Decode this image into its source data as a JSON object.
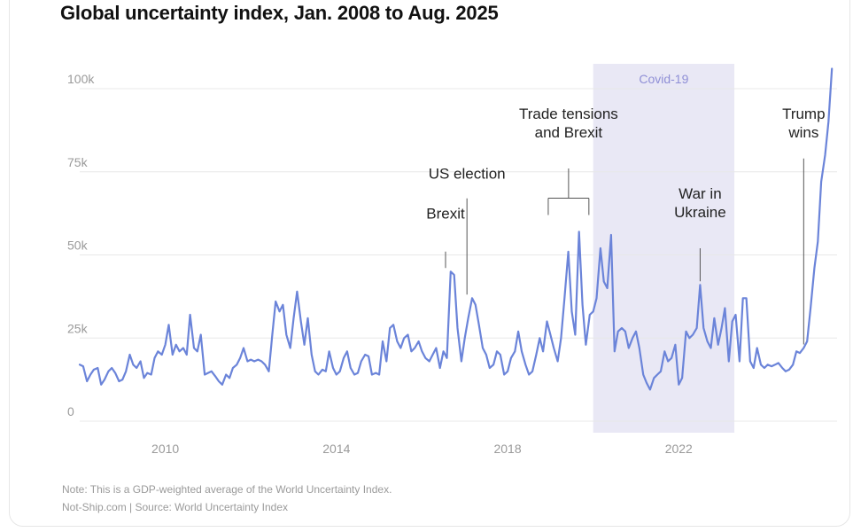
{
  "title": "Global uncertainty index, Jan. 2008 to Aug. 2025",
  "note": "Note: This is a GDP-weighted average of the World Uncertainty Index.",
  "source": "Not-Ship.com | Source: World Uncertainty Index",
  "colors": {
    "line": "#6b84d9",
    "covid_band": "#e9e8f5",
    "covid_label": "#8f8fd6",
    "grid": "#e8e8e8",
    "tick": "#9a9a9a",
    "annotation_text": "#222222",
    "annotation_line": "#555555"
  },
  "chart_data": {
    "type": "line",
    "title": "Global uncertainty index, Jan. 2008 to Aug. 2025",
    "xlabel": "",
    "ylabel": "",
    "xlim": [
      2008.0,
      2025.7
    ],
    "ylim": [
      0,
      108000
    ],
    "y_ticks": [
      0,
      25000,
      50000,
      75000,
      100000
    ],
    "y_tick_labels": [
      "0",
      "25k",
      "50k",
      "75k",
      "100k"
    ],
    "x_ticks": [
      2010,
      2014,
      2018,
      2022
    ],
    "x_tick_labels": [
      "2010",
      "2014",
      "2018",
      "2022"
    ],
    "grid": "horizontal",
    "legend": "none",
    "series": [
      {
        "name": "",
        "points": [
          [
            2008.0,
            17000
          ],
          [
            2008.08,
            16500
          ],
          [
            2008.17,
            12000
          ],
          [
            2008.25,
            14000
          ],
          [
            2008.33,
            15500
          ],
          [
            2008.42,
            16000
          ],
          [
            2008.5,
            11000
          ],
          [
            2008.58,
            12500
          ],
          [
            2008.67,
            15000
          ],
          [
            2008.75,
            16000
          ],
          [
            2008.83,
            14500
          ],
          [
            2008.92,
            12000
          ],
          [
            2009.0,
            12500
          ],
          [
            2009.08,
            15000
          ],
          [
            2009.17,
            20000
          ],
          [
            2009.25,
            17000
          ],
          [
            2009.33,
            16000
          ],
          [
            2009.42,
            18000
          ],
          [
            2009.5,
            13000
          ],
          [
            2009.58,
            14500
          ],
          [
            2009.67,
            14000
          ],
          [
            2009.75,
            19000
          ],
          [
            2009.83,
            21000
          ],
          [
            2009.92,
            20000
          ],
          [
            2010.0,
            23000
          ],
          [
            2010.08,
            29000
          ],
          [
            2010.17,
            20000
          ],
          [
            2010.25,
            23000
          ],
          [
            2010.33,
            21000
          ],
          [
            2010.42,
            22000
          ],
          [
            2010.5,
            20000
          ],
          [
            2010.58,
            32000
          ],
          [
            2010.67,
            22000
          ],
          [
            2010.75,
            21000
          ],
          [
            2010.83,
            26000
          ],
          [
            2010.92,
            14000
          ],
          [
            2011.0,
            14500
          ],
          [
            2011.08,
            15000
          ],
          [
            2011.17,
            13500
          ],
          [
            2011.25,
            12000
          ],
          [
            2011.33,
            11000
          ],
          [
            2011.42,
            14000
          ],
          [
            2011.5,
            13000
          ],
          [
            2011.58,
            16000
          ],
          [
            2011.67,
            17000
          ],
          [
            2011.75,
            19000
          ],
          [
            2011.83,
            22000
          ],
          [
            2011.92,
            18000
          ],
          [
            2012.0,
            18500
          ],
          [
            2012.08,
            18000
          ],
          [
            2012.17,
            18500
          ],
          [
            2012.25,
            18000
          ],
          [
            2012.33,
            17000
          ],
          [
            2012.42,
            15000
          ],
          [
            2012.5,
            26000
          ],
          [
            2012.58,
            36000
          ],
          [
            2012.67,
            33000
          ],
          [
            2012.75,
            35000
          ],
          [
            2012.83,
            26000
          ],
          [
            2012.92,
            22000
          ],
          [
            2013.0,
            31000
          ],
          [
            2013.08,
            39000
          ],
          [
            2013.17,
            30000
          ],
          [
            2013.25,
            23000
          ],
          [
            2013.33,
            31000
          ],
          [
            2013.42,
            20000
          ],
          [
            2013.5,
            15000
          ],
          [
            2013.58,
            14000
          ],
          [
            2013.67,
            15500
          ],
          [
            2013.75,
            15000
          ],
          [
            2013.83,
            21000
          ],
          [
            2013.92,
            16000
          ],
          [
            2014.0,
            14000
          ],
          [
            2014.08,
            15000
          ],
          [
            2014.17,
            19000
          ],
          [
            2014.25,
            21000
          ],
          [
            2014.33,
            16000
          ],
          [
            2014.42,
            14000
          ],
          [
            2014.5,
            14500
          ],
          [
            2014.58,
            18000
          ],
          [
            2014.67,
            20000
          ],
          [
            2014.75,
            19500
          ],
          [
            2014.83,
            14000
          ],
          [
            2014.92,
            14500
          ],
          [
            2015.0,
            14000
          ],
          [
            2015.08,
            24000
          ],
          [
            2015.17,
            18000
          ],
          [
            2015.25,
            28000
          ],
          [
            2015.33,
            29000
          ],
          [
            2015.42,
            24000
          ],
          [
            2015.5,
            22000
          ],
          [
            2015.58,
            25000
          ],
          [
            2015.67,
            26000
          ],
          [
            2015.75,
            21000
          ],
          [
            2015.83,
            22000
          ],
          [
            2015.92,
            24000
          ],
          [
            2016.0,
            21000
          ],
          [
            2016.08,
            19000
          ],
          [
            2016.17,
            18000
          ],
          [
            2016.25,
            20000
          ],
          [
            2016.33,
            22000
          ],
          [
            2016.42,
            16000
          ],
          [
            2016.5,
            21000
          ],
          [
            2016.58,
            19000
          ],
          [
            2016.67,
            45000
          ],
          [
            2016.75,
            44000
          ],
          [
            2016.83,
            28000
          ],
          [
            2016.92,
            18000
          ],
          [
            2017.0,
            25000
          ],
          [
            2017.08,
            31000
          ],
          [
            2017.17,
            37000
          ],
          [
            2017.25,
            35000
          ],
          [
            2017.33,
            29000
          ],
          [
            2017.42,
            22000
          ],
          [
            2017.5,
            20000
          ],
          [
            2017.58,
            16000
          ],
          [
            2017.67,
            17000
          ],
          [
            2017.75,
            21000
          ],
          [
            2017.83,
            20000
          ],
          [
            2017.92,
            14000
          ],
          [
            2018.0,
            15000
          ],
          [
            2018.08,
            19000
          ],
          [
            2018.17,
            21000
          ],
          [
            2018.25,
            27000
          ],
          [
            2018.33,
            21000
          ],
          [
            2018.42,
            17000
          ],
          [
            2018.5,
            14000
          ],
          [
            2018.58,
            15000
          ],
          [
            2018.67,
            20000
          ],
          [
            2018.75,
            25000
          ],
          [
            2018.83,
            21000
          ],
          [
            2018.92,
            30000
          ],
          [
            2019.0,
            26000
          ],
          [
            2019.08,
            22000
          ],
          [
            2019.17,
            18000
          ],
          [
            2019.25,
            25000
          ],
          [
            2019.33,
            37000
          ],
          [
            2019.42,
            51000
          ],
          [
            2019.5,
            33000
          ],
          [
            2019.58,
            26000
          ],
          [
            2019.67,
            57000
          ],
          [
            2019.75,
            35000
          ],
          [
            2019.83,
            23000
          ],
          [
            2019.92,
            32000
          ],
          [
            2020.0,
            33000
          ],
          [
            2020.08,
            37000
          ],
          [
            2020.17,
            52000
          ],
          [
            2020.25,
            42000
          ],
          [
            2020.33,
            40000
          ],
          [
            2020.42,
            56000
          ],
          [
            2020.5,
            21000
          ],
          [
            2020.58,
            27000
          ],
          [
            2020.67,
            28000
          ],
          [
            2020.75,
            27000
          ],
          [
            2020.83,
            22000
          ],
          [
            2020.92,
            25000
          ],
          [
            2021.0,
            27000
          ],
          [
            2021.08,
            22000
          ],
          [
            2021.17,
            14000
          ],
          [
            2021.25,
            11500
          ],
          [
            2021.33,
            9500
          ],
          [
            2021.42,
            13000
          ],
          [
            2021.5,
            14000
          ],
          [
            2021.58,
            15000
          ],
          [
            2021.67,
            21000
          ],
          [
            2021.75,
            18000
          ],
          [
            2021.83,
            19000
          ],
          [
            2021.92,
            23000
          ],
          [
            2022.0,
            11000
          ],
          [
            2022.08,
            13000
          ],
          [
            2022.17,
            27000
          ],
          [
            2022.25,
            25000
          ],
          [
            2022.33,
            26000
          ],
          [
            2022.42,
            28000
          ],
          [
            2022.5,
            41000
          ],
          [
            2022.58,
            28000
          ],
          [
            2022.67,
            24000
          ],
          [
            2022.75,
            22000
          ],
          [
            2022.83,
            31000
          ],
          [
            2022.92,
            23000
          ],
          [
            2023.0,
            28000
          ],
          [
            2023.08,
            34000
          ],
          [
            2023.17,
            18000
          ],
          [
            2023.25,
            30000
          ],
          [
            2023.33,
            32000
          ],
          [
            2023.42,
            18000
          ],
          [
            2023.5,
            37000
          ],
          [
            2023.58,
            37000
          ],
          [
            2023.67,
            18000
          ],
          [
            2023.75,
            16000
          ],
          [
            2023.83,
            22000
          ],
          [
            2023.92,
            17000
          ],
          [
            2024.0,
            16000
          ],
          [
            2024.08,
            17000
          ],
          [
            2024.17,
            16500
          ],
          [
            2024.25,
            17000
          ],
          [
            2024.33,
            17500
          ],
          [
            2024.42,
            16000
          ],
          [
            2024.5,
            15000
          ],
          [
            2024.58,
            15500
          ],
          [
            2024.67,
            17000
          ],
          [
            2024.75,
            21000
          ],
          [
            2024.83,
            20500
          ],
          [
            2024.92,
            22000
          ],
          [
            2025.0,
            24000
          ],
          [
            2025.08,
            34000
          ],
          [
            2025.17,
            46000
          ],
          [
            2025.25,
            54000
          ],
          [
            2025.33,
            72000
          ],
          [
            2025.42,
            80000
          ],
          [
            2025.5,
            90000
          ],
          [
            2025.58,
            106000
          ]
        ]
      }
    ],
    "shaded_regions": [
      {
        "label": "Covid-19",
        "x_start": 2020.0,
        "x_end": 2023.3
      }
    ],
    "annotations": [
      {
        "lines": [
          "Brexit"
        ],
        "x": 2016.55,
        "y_end": 45000,
        "bracket_end": null,
        "text_y": 61000,
        "line_top": 51000
      },
      {
        "lines": [
          "US election"
        ],
        "x": 2017.05,
        "y_end": 37000,
        "bracket_end": null,
        "text_y": 73000,
        "line_top": 67000
      },
      {
        "lines": [
          "Trade tensions",
          "and Brexit"
        ],
        "x": 2018.95,
        "y_end": 58000,
        "bracket_end": 2019.9,
        "text_y": 91000,
        "line_top": 76000
      },
      {
        "lines": [
          "War in",
          "Ukraine"
        ],
        "x": 2022.5,
        "y_end": 41000,
        "bracket_end": null,
        "text_y": 67000,
        "line_top": 52000
      },
      {
        "lines": [
          "Trump",
          "wins"
        ],
        "x": 2024.92,
        "y_end": 22000,
        "bracket_end": null,
        "text_y": 91000,
        "line_top": 79000
      }
    ]
  }
}
